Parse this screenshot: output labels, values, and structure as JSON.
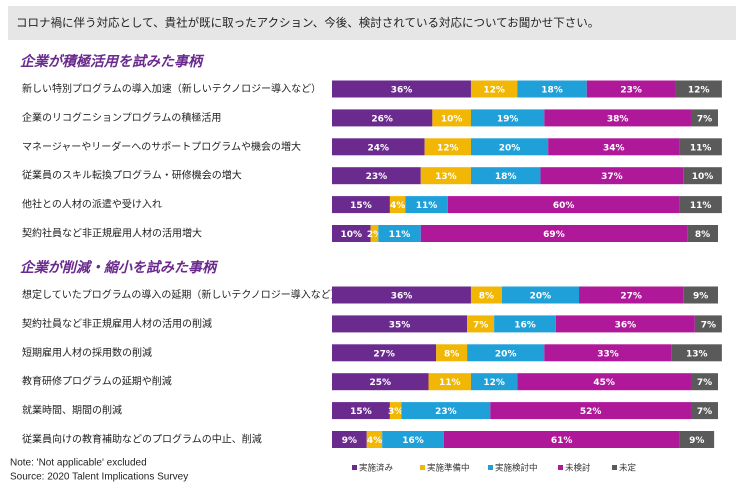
{
  "header": {
    "title": "コロナ禍に伴う対応として、貴社が既に取ったアクション、今後、検討されている対応についてお聞かせ下さい。"
  },
  "notes": [
    "Note: 'Not applicable' excluded",
    "Source: 2020 Talent Implications Survey"
  ],
  "chart_data": [
    {
      "type": "bar",
      "orientation": "horizontal",
      "stacked": true,
      "title": "企業が積極活用を試みた事柄",
      "categories": [
        "新しい特別プログラムの導入加速（新しいテクノロジー導入など）",
        "企業のリコグニションプログラムの積極活用",
        "マネージャーやリーダーへのサポートプログラムや機会の増大",
        "従業員のスキル転換プログラム・研修機会の増大",
        "他社との人材の派遣や受け入れ",
        "契約社員など非正規雇用人材の活用増大"
      ],
      "series": [
        {
          "color": "#6a2a8e",
          "values": [
            36,
            26,
            24,
            23,
            15,
            10
          ],
          "value_labels": [
            "36%",
            "26%",
            "24%",
            "23%",
            "15%",
            "10%"
          ]
        },
        {
          "color": "#f2b705",
          "values": [
            12,
            10,
            12,
            13,
            4,
            2
          ],
          "value_labels": [
            "12%",
            "10%",
            "12%",
            "13%",
            "4%",
            "2%"
          ]
        },
        {
          "color": "#1fa0d8",
          "values": [
            18,
            19,
            20,
            18,
            11,
            11
          ],
          "value_labels": [
            "18%",
            "19%",
            "20%",
            "18%",
            "11%",
            "11%"
          ]
        },
        {
          "color": "#b0189a",
          "values": [
            23,
            38,
            34,
            37,
            60,
            69
          ],
          "value_labels": [
            "23%",
            "38%",
            "34%",
            "37%",
            "60%",
            "69%"
          ]
        },
        {
          "color": "#5a5a5a",
          "values": [
            12,
            7,
            11,
            10,
            11,
            8
          ],
          "value_labels": [
            "12%",
            "7%",
            "11%",
            "10%",
            "11%",
            "8%"
          ]
        }
      ]
    },
    {
      "type": "bar",
      "orientation": "horizontal",
      "stacked": true,
      "title": "企業が削減・縮小を試みた事柄",
      "categories": [
        "想定していたプログラムの導入の延期（新しいテクノロジー導入など）",
        "契約社員など非正規雇用人材の活用の削減",
        "短期雇用人材の採用数の削減",
        "教育研修プログラムの延期や削減",
        "就業時間、期間の削減",
        "従業員向けの教育補助などのプログラムの中止、削減"
      ],
      "series": [
        {
          "name": "実施済み",
          "color": "#6a2a8e",
          "values": [
            36,
            35,
            27,
            25,
            15,
            9
          ],
          "value_labels": [
            "36%",
            "35%",
            "27%",
            "25%",
            "15%",
            "9%"
          ]
        },
        {
          "name": "実施準備中",
          "color": "#f2b705",
          "values": [
            8,
            7,
            8,
            11,
            3,
            4
          ],
          "value_labels": [
            "8%",
            "7%",
            "8%",
            "11%",
            "3%",
            "4%"
          ]
        },
        {
          "name": "実施検討中",
          "color": "#1fa0d8",
          "values": [
            20,
            16,
            20,
            12,
            23,
            16
          ],
          "value_labels": [
            "20%",
            "16%",
            "20%",
            "12%",
            "23%",
            "16%"
          ]
        },
        {
          "name": "未検討",
          "color": "#b0189a",
          "values": [
            27,
            36,
            33,
            45,
            52,
            61
          ],
          "value_labels": [
            "27%",
            "36%",
            "33%",
            "45%",
            "52%",
            "61%"
          ]
        },
        {
          "name": "未定",
          "color": "#5a5a5a",
          "values": [
            9,
            7,
            13,
            7,
            7,
            9
          ],
          "value_labels": [
            "9%",
            "7%",
            "13%",
            "7%",
            "7%",
            "9%"
          ]
        }
      ]
    }
  ]
}
